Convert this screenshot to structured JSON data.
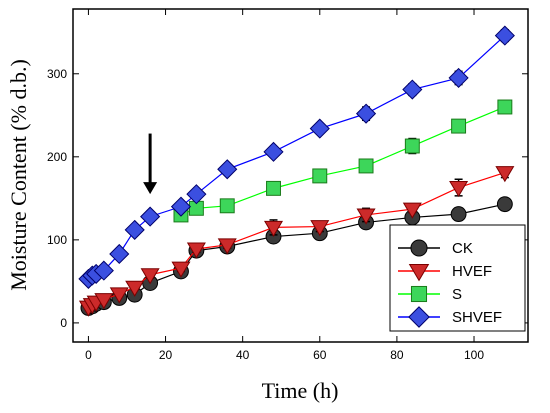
{
  "chart_data": {
    "type": "line",
    "xlabel": "Time (h)",
    "ylabel": "Moisture Content (% d.b.)",
    "xlim": [
      -4,
      114
    ],
    "ylim": [
      -23,
      378
    ],
    "xticks": [
      0,
      20,
      40,
      60,
      80,
      100
    ],
    "yticks": [
      0,
      100,
      200,
      300
    ],
    "grid": false,
    "legend_position": "bottom-right",
    "annotation": {
      "type": "down-arrow",
      "x": 16,
      "y_tip": 155,
      "y_tail": 228
    },
    "series": [
      {
        "name": "CK",
        "color": "#000000",
        "marker_fill": "#3a3a3a",
        "marker": "circle",
        "x": [
          0,
          1,
          2,
          4,
          8,
          12,
          16,
          24,
          28,
          36,
          48,
          60,
          72,
          84,
          96,
          108
        ],
        "y": [
          18,
          20,
          23,
          25,
          30,
          34,
          48,
          62,
          87,
          92,
          104,
          108,
          121,
          127,
          131,
          143
        ],
        "err": [
          2,
          2,
          2,
          2,
          3,
          3,
          3,
          5,
          4,
          5,
          6,
          5,
          6,
          6,
          6,
          6
        ]
      },
      {
        "name": "HVEF",
        "color": "#ff0000",
        "marker_fill": "#cc2a2a",
        "marker": "triangle-down",
        "x": [
          0,
          1,
          2,
          4,
          8,
          12,
          16,
          24,
          28,
          36,
          48,
          60,
          72,
          84,
          96,
          108
        ],
        "y": [
          19,
          22,
          25,
          28,
          35,
          43,
          58,
          66,
          89,
          94,
          115,
          116,
          130,
          137,
          163,
          181
        ],
        "err": [
          2,
          2,
          2,
          2,
          3,
          3,
          4,
          4,
          4,
          4,
          9,
          6,
          8,
          4,
          10,
          6
        ]
      },
      {
        "name": "S",
        "color": "#00ff00",
        "marker_fill": "#3dd65a",
        "marker": "square",
        "x": [
          24,
          28,
          36,
          48,
          60,
          72,
          84,
          96,
          108
        ],
        "y": [
          130,
          138,
          141,
          162,
          177,
          189,
          213,
          237,
          260
        ],
        "err": [
          4,
          5,
          5,
          5,
          6,
          6,
          9,
          6,
          6
        ]
      },
      {
        "name": "SHVEF",
        "color": "#0000ff",
        "marker_fill": "#3b4fe0",
        "marker": "diamond",
        "x": [
          0,
          1,
          2,
          4,
          8,
          12,
          16,
          24,
          28,
          36,
          48,
          60,
          72,
          84,
          96,
          108
        ],
        "y": [
          53,
          57,
          59,
          63,
          83,
          112,
          128,
          140,
          155,
          185,
          206,
          234,
          252,
          281,
          295,
          346
        ],
        "err": [
          3,
          3,
          3,
          3,
          4,
          4,
          4,
          4,
          5,
          6,
          6,
          6,
          8,
          7,
          8,
          7
        ]
      }
    ]
  }
}
